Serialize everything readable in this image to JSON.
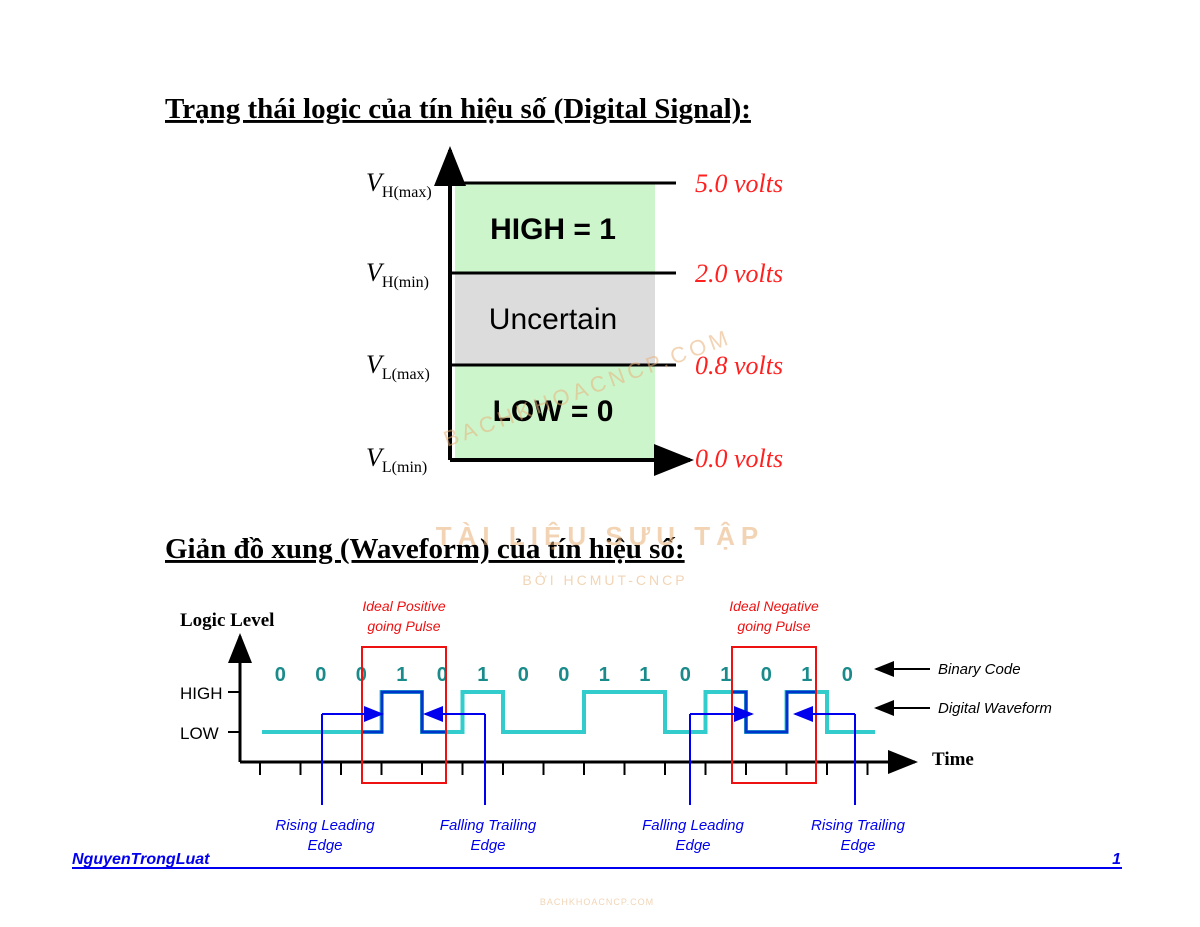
{
  "section1": {
    "title": "Trạng thái logic của tín hiệu số (Digital Signal):",
    "levels": [
      {
        "symbol": "V",
        "sub": "H(max)",
        "volts": "5.0 volts"
      },
      {
        "symbol": "V",
        "sub": "H(min)",
        "volts": "2.0 volts"
      },
      {
        "symbol": "V",
        "sub": "L(max)",
        "volts": "0.8 volts"
      },
      {
        "symbol": "V",
        "sub": "L(min)",
        "volts": "0.0 volts"
      }
    ],
    "regions": [
      "HIGH = 1",
      "Uncertain",
      "LOW = 0"
    ]
  },
  "section2": {
    "title": "Giản đồ xung (Waveform) của tín hiệu số:",
    "y_label": "Logic Level",
    "high": "HIGH",
    "low": "LOW",
    "x_label": "Time",
    "bits": [
      "0",
      "0",
      "0",
      "1",
      "0",
      "1",
      "0",
      "0",
      "1",
      "1",
      "0",
      "1",
      "0",
      "1",
      "0"
    ],
    "legend": [
      "Binary Code",
      "Digital Waveform"
    ],
    "pulses": [
      [
        "Ideal Positive",
        "going Pulse"
      ],
      [
        "Ideal Negative",
        "going Pulse"
      ]
    ],
    "edges": [
      [
        "Rising Leading",
        "Edge"
      ],
      [
        "Falling Trailing",
        "Edge"
      ],
      [
        "Falling Leading",
        "Edge"
      ],
      [
        "Rising Trailing",
        "Edge"
      ]
    ]
  },
  "watermark": [
    "BACHKHOACNCP.COM",
    "TÀI LIỆU SƯU TẬP",
    "BỞI HCMUT-CNCP",
    "BACHKHOACNCP.COM"
  ],
  "footer": {
    "author": "NguyenTrongLuat",
    "page": "1"
  }
}
